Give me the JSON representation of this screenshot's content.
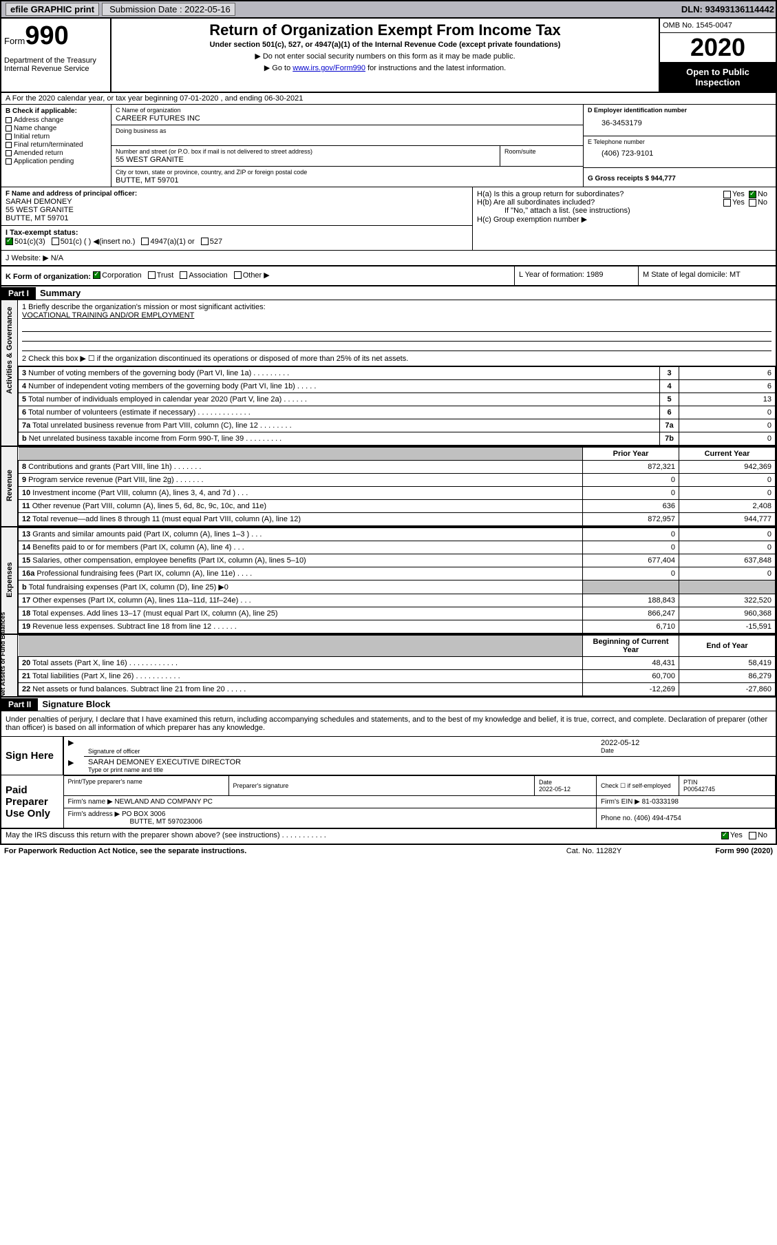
{
  "topbar": {
    "efile": "efile GRAPHIC print",
    "sub_label": "Submission Date : 2022-05-16",
    "dln": "DLN: 93493136114442"
  },
  "header": {
    "form_prefix": "Form",
    "form_num": "990",
    "dept1": "Department of the Treasury",
    "dept2": "Internal Revenue Service",
    "title": "Return of Organization Exempt From Income Tax",
    "subtitle": "Under section 501(c), 527, or 4947(a)(1) of the Internal Revenue Code (except private foundations)",
    "note1": "▶ Do not enter social security numbers on this form as it may be made public.",
    "note2_pre": "▶ Go to ",
    "note2_link": "www.irs.gov/Form990",
    "note2_post": " for instructions and the latest information.",
    "omb": "OMB No. 1545-0047",
    "year": "2020",
    "open": "Open to Public Inspection"
  },
  "section_a": "A For the 2020 calendar year, or tax year beginning 07-01-2020    , and ending 06-30-2021",
  "col_b": {
    "label": "B Check if applicable:",
    "items": [
      "Address change",
      "Name change",
      "Initial return",
      "Final return/terminated",
      "Amended return",
      "Application pending"
    ]
  },
  "col_c": {
    "name_lbl": "C Name of organization",
    "name": "CAREER FUTURES INC",
    "dba_lbl": "Doing business as",
    "dba": "",
    "addr_lbl": "Number and street (or P.O. box if mail is not delivered to street address)",
    "room_lbl": "Room/suite",
    "addr": "55 WEST GRANITE",
    "city_lbl": "City or town, state or province, country, and ZIP or foreign postal code",
    "city": "BUTTE, MT  59701"
  },
  "col_de": {
    "d_lbl": "D Employer identification number",
    "d_val": "36-3453179",
    "e_lbl": "E Telephone number",
    "e_val": "(406) 723-9101",
    "g_lbl": "G Gross receipts $ 944,777"
  },
  "row_f": {
    "lbl": "F Name and address of principal officer:",
    "line1": "SARAH DEMONEY",
    "line2": "55 WEST GRANITE",
    "line3": "BUTTE, MT  59701"
  },
  "row_h": {
    "a": "H(a)  Is this a group return for subordinates?",
    "b": "H(b)  Are all subordinates included?",
    "b_note": "If \"No,\" attach a list. (see instructions)",
    "c": "H(c)  Group exemption number ▶"
  },
  "row_i": {
    "lbl": "I    Tax-exempt status:",
    "opts": [
      "501(c)(3)",
      "501(c) (  ) ◀(insert no.)",
      "4947(a)(1) or",
      "527"
    ]
  },
  "row_j": "J    Website: ▶   N/A",
  "row_k": {
    "k": "K Form of organization:",
    "opts": [
      "Corporation",
      "Trust",
      "Association",
      "Other ▶"
    ],
    "l": "L Year of formation: 1989",
    "m": "M State of legal domicile: MT"
  },
  "part1": {
    "hdr": "Part I",
    "title": "Summary",
    "gov_label": "Activities & Governance",
    "rev_label": "Revenue",
    "exp_label": "Expenses",
    "net_label": "Net Assets or Fund Balances",
    "line1": "1  Briefly describe the organization's mission or most significant activities:",
    "mission": "VOCATIONAL TRAINING AND/OR EMPLOYMENT",
    "line2": "2    Check this box ▶ ☐  if the organization discontinued its operations or disposed of more than 25% of its net assets.",
    "rows_gov": [
      {
        "n": "3",
        "d": "Number of voting members of the governing body (Part VI, line 1a)   .    .    .    .    .    .    .    .    .",
        "k": "3",
        "v": "6"
      },
      {
        "n": "4",
        "d": "Number of independent voting members of the governing body (Part VI, line 1b)  .    .    .    .    .",
        "k": "4",
        "v": "6"
      },
      {
        "n": "5",
        "d": "Total number of individuals employed in calendar year 2020 (Part V, line 2a)   .    .    .    .    .    .",
        "k": "5",
        "v": "13"
      },
      {
        "n": "6",
        "d": "Total number of volunteers (estimate if necessary)   .    .    .    .    .    .    .    .    .    .    .    .    .",
        "k": "6",
        "v": "0"
      },
      {
        "n": "7a",
        "d": "Total unrelated business revenue from Part VIII, column (C), line 12   .    .    .    .    .    .    .    .",
        "k": "7a",
        "v": "0"
      },
      {
        "n": "b",
        "d": "Net unrelated business taxable income from Form 990-T, line 39   .    .    .    .    .    .    .    .    .",
        "k": "7b",
        "v": "0"
      }
    ],
    "col_hdrs": {
      "prior": "Prior Year",
      "current": "Current Year",
      "begin": "Beginning of Current Year",
      "end": "End of Year"
    },
    "rows_rev": [
      {
        "n": "8",
        "d": "Contributions and grants (Part VIII, line 1h)   .    .    .    .    .    .    .",
        "p": "872,321",
        "c": "942,369"
      },
      {
        "n": "9",
        "d": "Program service revenue (Part VIII, line 2g)   .    .    .    .    .    .    .",
        "p": "0",
        "c": "0"
      },
      {
        "n": "10",
        "d": "Investment income (Part VIII, column (A), lines 3, 4, and 7d )   .    .    .",
        "p": "0",
        "c": "0"
      },
      {
        "n": "11",
        "d": "Other revenue (Part VIII, column (A), lines 5, 6d, 8c, 9c, 10c, and 11e)",
        "p": "636",
        "c": "2,408"
      },
      {
        "n": "12",
        "d": "Total revenue—add lines 8 through 11 (must equal Part VIII, column (A), line 12)",
        "p": "872,957",
        "c": "944,777"
      }
    ],
    "rows_exp": [
      {
        "n": "13",
        "d": "Grants and similar amounts paid (Part IX, column (A), lines 1–3 )   .    .    .",
        "p": "0",
        "c": "0"
      },
      {
        "n": "14",
        "d": "Benefits paid to or for members (Part IX, column (A), line 4)   .    .    .",
        "p": "0",
        "c": "0"
      },
      {
        "n": "15",
        "d": "Salaries, other compensation, employee benefits (Part IX, column (A), lines 5–10)",
        "p": "677,404",
        "c": "637,848"
      },
      {
        "n": "16a",
        "d": "Professional fundraising fees (Part IX, column (A), line 11e)   .    .    .    .",
        "p": "0",
        "c": "0"
      },
      {
        "n": "b",
        "d": "Total fundraising expenses (Part IX, column (D), line 25) ▶0",
        "p": "grey",
        "c": "grey"
      },
      {
        "n": "17",
        "d": "Other expenses (Part IX, column (A), lines 11a–11d, 11f–24e)   .    .    .",
        "p": "188,843",
        "c": "322,520"
      },
      {
        "n": "18",
        "d": "Total expenses. Add lines 13–17 (must equal Part IX, column (A), line 25)",
        "p": "866,247",
        "c": "960,368"
      },
      {
        "n": "19",
        "d": "Revenue less expenses. Subtract line 18 from line 12   .    .    .    .    .    .",
        "p": "6,710",
        "c": "-15,591"
      }
    ],
    "rows_net": [
      {
        "n": "20",
        "d": "Total assets (Part X, line 16)   .    .    .    .    .    .    .    .    .    .    .    .",
        "p": "48,431",
        "c": "58,419"
      },
      {
        "n": "21",
        "d": "Total liabilities (Part X, line 26)   .    .    .    .    .    .    .    .    .    .    .",
        "p": "60,700",
        "c": "86,279"
      },
      {
        "n": "22",
        "d": "Net assets or fund balances. Subtract line 21 from line 20   .    .    .    .    .",
        "p": "-12,269",
        "c": "-27,860"
      }
    ]
  },
  "part2": {
    "hdr": "Part II",
    "title": "Signature Block",
    "decl": "Under penalties of perjury, I declare that I have examined this return, including accompanying schedules and statements, and to the best of my knowledge and belief, it is true, correct, and complete. Declaration of preparer (other than officer) is based on all information of which preparer has any knowledge.",
    "sign_here": "Sign Here",
    "sig_officer": "Signature of officer",
    "sig_date": "2022-05-12",
    "date_lbl": "Date",
    "officer_name": "SARAH DEMONEY EXECUTIVE DIRECTOR",
    "officer_lbl": "Type or print name and title",
    "paid": "Paid Preparer Use Only",
    "prep_name_lbl": "Print/Type preparer's name",
    "prep_sig_lbl": "Preparer's signature",
    "prep_date": "2022-05-12",
    "self_emp": "Check ☐ if self-employed",
    "ptin_lbl": "PTIN",
    "ptin": "P00542745",
    "firm_name_lbl": "Firm's name    ▶",
    "firm_name": "NEWLAND AND COMPANY PC",
    "firm_ein_lbl": "Firm's EIN ▶",
    "firm_ein": "81-0333198",
    "firm_addr_lbl": "Firm's address ▶",
    "firm_addr1": "PO BOX 3006",
    "firm_addr2": "BUTTE, MT  597023006",
    "phone_lbl": "Phone no.",
    "phone": "(406) 494-4754",
    "discuss": "May the IRS discuss this return with the preparer shown above? (see instructions)    .    .    .    .    .    .    .    .    .    .    .",
    "yes": "Yes",
    "no": "No"
  },
  "footer": {
    "notice": "For Paperwork Reduction Act Notice, see the separate instructions.",
    "cat": "Cat. No. 11282Y",
    "form": "Form 990 (2020)"
  }
}
